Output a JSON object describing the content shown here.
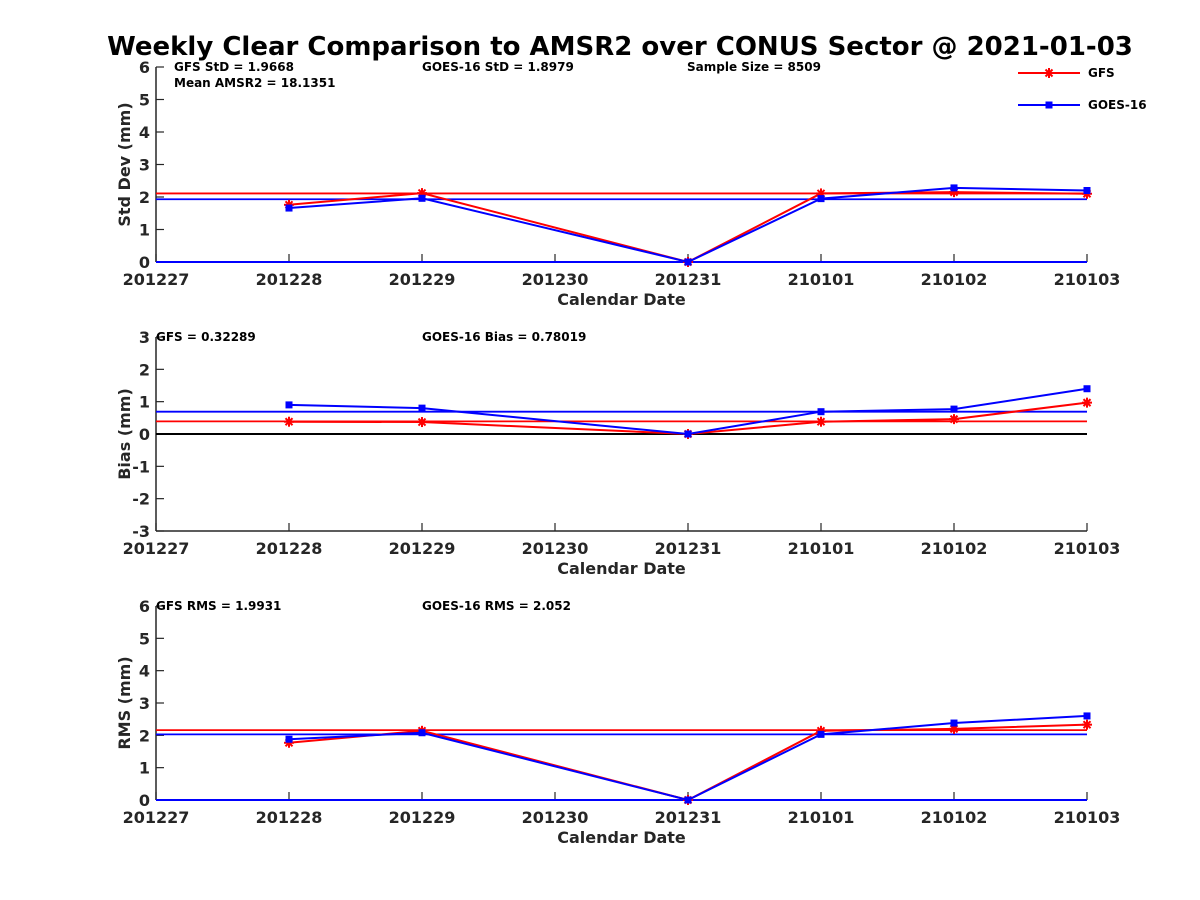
{
  "figure": {
    "title": "Weekly Clear Comparison to AMSR2 over CONUS Sector @ 2021-01-03"
  },
  "legend": {
    "placement": "top-right",
    "entries": [
      {
        "name": "GFS",
        "color": "#ff0000",
        "marker": "asterisk"
      },
      {
        "name": "GOES-16",
        "color": "#0000ff",
        "marker": "square"
      }
    ]
  },
  "chart_data": [
    {
      "type": "line",
      "xlabel": "Calendar Date",
      "ylabel": "Std Dev (mm)",
      "ylim": [
        0,
        6
      ],
      "yticks": [
        0,
        1,
        2,
        3,
        4,
        5,
        6
      ],
      "x": [
        "201227",
        "201228",
        "201229",
        "201230",
        "201231",
        "210101",
        "210102",
        "210103"
      ],
      "annotations": [
        "GFS StD = 1.9668",
        "GOES-16 StD = 1.8979",
        "Sample Size = 8509",
        "Mean AMSR2 = 18.1351"
      ],
      "series": [
        {
          "name": "GFS",
          "color": "#ff0000",
          "marker": "asterisk",
          "values": [
            null,
            1.76,
            2.12,
            null,
            0,
            2.11,
            2.15,
            2.1
          ]
        },
        {
          "name": "GOES-16",
          "color": "#0000ff",
          "marker": "square",
          "values": [
            null,
            1.66,
            1.96,
            null,
            0,
            1.95,
            2.28,
            2.2
          ]
        }
      ],
      "mean_lines": [
        {
          "series": "GFS",
          "color": "#ff0000",
          "value": 2.11
        },
        {
          "series": "GOES-16",
          "color": "#0000ff",
          "value": 1.93
        }
      ],
      "baseline": {
        "color": "#0000ff",
        "value": 0
      },
      "grid": false
    },
    {
      "type": "line",
      "xlabel": "Calendar Date",
      "ylabel": "Bias (mm)",
      "ylim": [
        -3,
        3
      ],
      "yticks": [
        -3,
        -2,
        -1,
        0,
        1,
        2,
        3
      ],
      "x": [
        "201227",
        "201228",
        "201229",
        "201230",
        "201231",
        "210101",
        "210102",
        "210103"
      ],
      "annotations": [
        "GFS = 0.32289",
        "GOES-16 Bias  = 0.78019"
      ],
      "series": [
        {
          "name": "GFS",
          "color": "#ff0000",
          "marker": "asterisk",
          "values": [
            null,
            0.38,
            0.37,
            null,
            0,
            0.38,
            0.46,
            0.97
          ]
        },
        {
          "name": "GOES-16",
          "color": "#0000ff",
          "marker": "square",
          "values": [
            null,
            0.9,
            0.8,
            null,
            0,
            0.69,
            0.77,
            1.4
          ]
        }
      ],
      "mean_lines": [
        {
          "series": "GFS",
          "color": "#ff0000",
          "value": 0.39
        },
        {
          "series": "GOES-16",
          "color": "#0000ff",
          "value": 0.69
        }
      ],
      "baseline": {
        "color": "#000000",
        "value": 0
      },
      "grid": false
    },
    {
      "type": "line",
      "xlabel": "Calendar Date",
      "ylabel": "RMS (mm)",
      "ylim": [
        0,
        6
      ],
      "yticks": [
        0,
        1,
        2,
        3,
        4,
        5,
        6
      ],
      "x": [
        "201227",
        "201228",
        "201229",
        "201230",
        "201231",
        "210101",
        "210102",
        "210103"
      ],
      "annotations": [
        "GFS RMS = 1.9931",
        "GOES-16 RMS = 2.052"
      ],
      "series": [
        {
          "name": "GFS",
          "color": "#ff0000",
          "marker": "asterisk",
          "values": [
            null,
            1.77,
            2.14,
            null,
            0,
            2.14,
            2.2,
            2.33
          ]
        },
        {
          "name": "GOES-16",
          "color": "#0000ff",
          "marker": "square",
          "values": [
            null,
            1.88,
            2.08,
            null,
            0,
            2.03,
            2.38,
            2.6
          ]
        }
      ],
      "mean_lines": [
        {
          "series": "GFS",
          "color": "#ff0000",
          "value": 2.16
        },
        {
          "series": "GOES-16",
          "color": "#0000ff",
          "value": 2.03
        }
      ],
      "baseline": {
        "color": "#0000ff",
        "value": 0
      },
      "grid": false
    }
  ]
}
